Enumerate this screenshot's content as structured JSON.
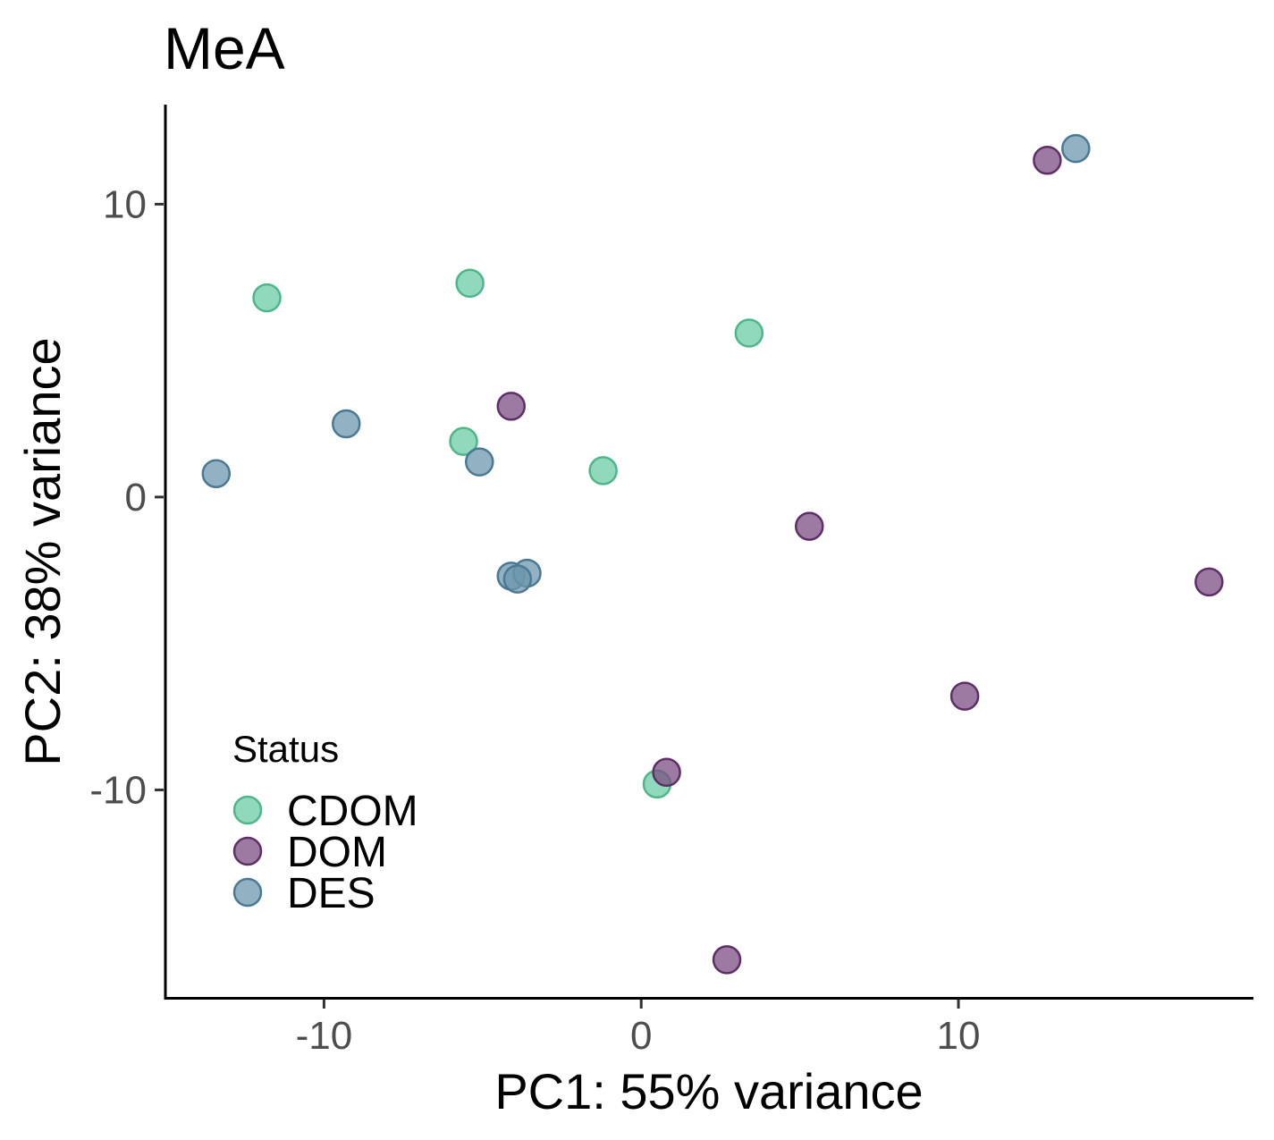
{
  "chart_data": {
    "type": "scatter",
    "title": "MeA",
    "xlabel": "PC1: 55% variance",
    "ylabel": "PC2: 38% variance",
    "xlim": [
      -15,
      19.3
    ],
    "ylim": [
      -17.1,
      13.4
    ],
    "x_ticks": [
      -10,
      0,
      10
    ],
    "y_ticks": [
      -10,
      0,
      10
    ],
    "x_tick_labels": [
      "-10",
      "0",
      "10"
    ],
    "y_tick_labels": [
      "-10",
      "0",
      "10"
    ],
    "grid": false,
    "legend": {
      "title": "Status",
      "placement": "bottom-left-inside"
    },
    "series": [
      {
        "name": "CDOM",
        "color": "#6ccca5",
        "stroke": "#4fb68c",
        "points": [
          {
            "x": -11.8,
            "y": 6.8
          },
          {
            "x": -5.4,
            "y": 7.3
          },
          {
            "x": 3.4,
            "y": 5.6
          },
          {
            "x": -5.6,
            "y": 1.9
          },
          {
            "x": -1.2,
            "y": 0.9
          },
          {
            "x": 0.5,
            "y": -9.8
          }
        ]
      },
      {
        "name": "DOM",
        "color": "#7b4d83",
        "stroke": "#5e2f67",
        "points": [
          {
            "x": 12.8,
            "y": 11.5
          },
          {
            "x": -4.1,
            "y": 3.1
          },
          {
            "x": 5.3,
            "y": -1.0
          },
          {
            "x": 17.9,
            "y": -2.9
          },
          {
            "x": 10.2,
            "y": -6.8
          },
          {
            "x": 0.8,
            "y": -9.4
          },
          {
            "x": 2.7,
            "y": -15.8
          }
        ]
      },
      {
        "name": "DES",
        "color": "#6d97ad",
        "stroke": "#4a7a93",
        "points": [
          {
            "x": 13.7,
            "y": 11.9
          },
          {
            "x": -9.3,
            "y": 2.5
          },
          {
            "x": -13.4,
            "y": 0.8
          },
          {
            "x": -5.1,
            "y": 1.2
          },
          {
            "x": -4.1,
            "y": -2.7
          },
          {
            "x": -3.6,
            "y": -2.6
          },
          {
            "x": -3.9,
            "y": -2.8
          }
        ]
      }
    ]
  }
}
